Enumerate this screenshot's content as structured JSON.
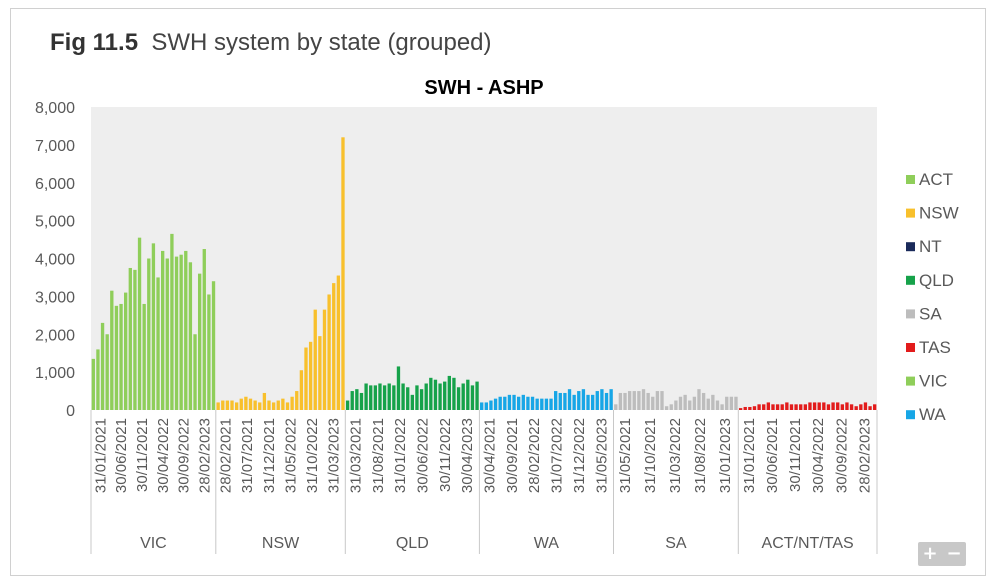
{
  "figure": {
    "number": "Fig 11.5",
    "caption": "SWH system by state (grouped)"
  },
  "zoom": {
    "plus": "+",
    "minus": "−"
  },
  "chart_data": {
    "type": "bar",
    "title": "SWH - ASHP",
    "ylim": [
      0,
      8000
    ],
    "yticks": [
      "0",
      "1,000",
      "2,000",
      "3,000",
      "4,000",
      "5,000",
      "6,000",
      "7,000",
      "8,000"
    ],
    "grid": false,
    "legend_position": "right",
    "legend": [
      {
        "name": "ACT",
        "color": "#8fce5a"
      },
      {
        "name": "NSW",
        "color": "#f8c02c"
      },
      {
        "name": "NT",
        "color": "#1a2a5a"
      },
      {
        "name": "QLD",
        "color": "#16a24a"
      },
      {
        "name": "SA",
        "color": "#bdbdbd"
      },
      {
        "name": "TAS",
        "color": "#e21b1b"
      },
      {
        "name": "VIC",
        "color": "#8fce5a"
      },
      {
        "name": "WA",
        "color": "#17a6e6"
      }
    ],
    "groups": [
      {
        "name": "VIC",
        "color": "#8fce5a",
        "ticks": [
          "31/01/2021",
          "30/06/2021",
          "30/11/2021",
          "30/04/2022",
          "30/09/2022",
          "28/02/2023"
        ],
        "values": [
          1350,
          1600,
          2300,
          2000,
          3150,
          2750,
          2800,
          3100,
          3750,
          3700,
          4550,
          2800,
          4000,
          4400,
          3500,
          4200,
          4000,
          4650,
          4050,
          4100,
          4200,
          3900,
          2000,
          3600,
          4250,
          3050,
          3400
        ]
      },
      {
        "name": "NSW",
        "color": "#f8c02c",
        "ticks": [
          "28/02/2021",
          "31/07/2021",
          "31/12/2021",
          "31/05/2022",
          "31/10/2022",
          "31/03/2023"
        ],
        "values": [
          200,
          250,
          250,
          250,
          200,
          300,
          350,
          300,
          250,
          200,
          450,
          250,
          200,
          250,
          300,
          200,
          350,
          500,
          1050,
          1650,
          1800,
          2650,
          1950,
          2650,
          3050,
          3350,
          3550,
          7200
        ]
      },
      {
        "name": "QLD",
        "color": "#16a24a",
        "ticks": [
          "31/03/2021",
          "31/08/2021",
          "31/01/2022",
          "30/06/2022",
          "30/11/2022",
          "30/04/2023"
        ],
        "values": [
          250,
          500,
          550,
          450,
          700,
          650,
          650,
          700,
          650,
          700,
          650,
          1150,
          700,
          600,
          400,
          650,
          550,
          700,
          850,
          800,
          700,
          750,
          900,
          850,
          600,
          700,
          800,
          650,
          750
        ]
      },
      {
        "name": "WA",
        "color": "#17a6e6",
        "ticks": [
          "30/04/2021",
          "30/09/2021",
          "28/02/2022",
          "31/07/2022",
          "31/12/2022",
          "31/05/2023"
        ],
        "values": [
          200,
          200,
          250,
          300,
          350,
          350,
          400,
          400,
          350,
          400,
          350,
          350,
          300,
          300,
          300,
          300,
          500,
          450,
          450,
          550,
          400,
          500,
          550,
          400,
          400,
          500,
          550,
          450,
          550
        ]
      },
      {
        "name": "SA",
        "color": "#bdbdbd",
        "ticks": [
          "31/05/2021",
          "31/10/2021",
          "31/03/2022",
          "31/08/2022",
          "31/01/2023"
        ],
        "values": [
          150,
          450,
          450,
          500,
          500,
          500,
          550,
          450,
          350,
          500,
          500,
          100,
          150,
          250,
          350,
          400,
          250,
          350,
          550,
          450,
          300,
          400,
          250,
          150,
          350,
          350,
          350
        ]
      },
      {
        "name": "ACT/NT/TAS",
        "color": "#e21b1b",
        "ticks": [
          "31/01/2021",
          "30/06/2021",
          "30/11/2021",
          "30/04/2022",
          "30/09/2022",
          "28/02/2023"
        ],
        "values": [
          50,
          80,
          80,
          100,
          150,
          150,
          200,
          150,
          150,
          150,
          200,
          150,
          150,
          150,
          150,
          200,
          200,
          200,
          200,
          150,
          200,
          200,
          150,
          200,
          150,
          100,
          150,
          200,
          100,
          150
        ]
      }
    ]
  }
}
